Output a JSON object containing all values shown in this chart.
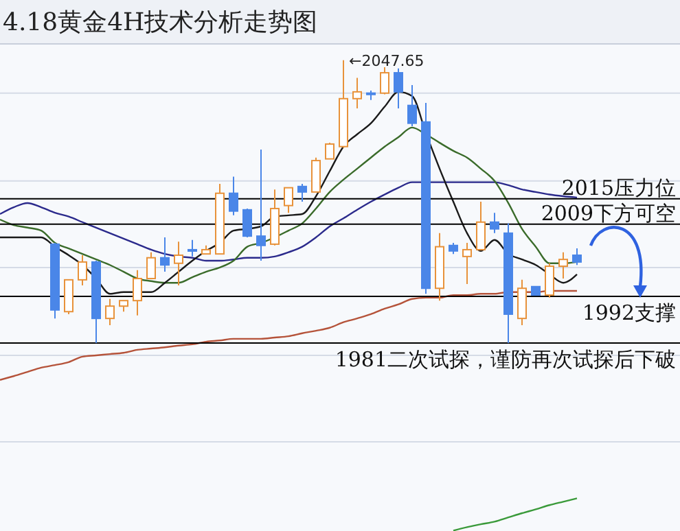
{
  "chart_data": {
    "type": "candlestick",
    "title": "4.18黄金4H技术分析走势图",
    "categories": [
      null,
      null,
      null,
      null,
      null,
      null,
      null,
      null,
      null,
      null,
      null,
      null,
      null,
      null,
      null,
      null,
      null,
      null,
      null,
      null,
      null,
      null,
      null,
      null,
      null,
      null,
      null,
      null,
      null,
      null,
      null,
      null,
      null,
      null,
      null,
      null,
      null,
      null,
      null,
      null,
      null,
      null,
      null,
      null,
      null,
      null,
      null,
      null,
      null,
      null
    ],
    "ohlc": [
      null,
      null,
      null,
      null,
      [
        2004.3,
        2004.6,
        1986.8,
        1988.8
      ],
      [
        1988.4,
        1995.9,
        1987.8,
        1995.9
      ],
      [
        1995.9,
        2001.7,
        1994.6,
        2000.1
      ],
      [
        2000.1,
        2000.4,
        1981,
        1986.8
      ],
      [
        1986.8,
        1991.4,
        1985.2,
        1989.7
      ],
      [
        1989.7,
        1991.0,
        1988.4,
        1991.0
      ],
      [
        1991.0,
        1998.2,
        1987.5,
        1996.2
      ],
      [
        1996.2,
        2002.4,
        1996.2,
        2001.1
      ],
      [
        2001.1,
        2005.9,
        1997.8,
        1999.4
      ],
      [
        1999.8,
        2004.9,
        1994.6,
        2001.7
      ],
      [
        2003.0,
        2005.3,
        2001.4,
        2002.7
      ],
      [
        2002.0,
        2004.0,
        2002.0,
        2003.0
      ],
      [
        2002.0,
        2018.5,
        2002.0,
        2016.3
      ],
      [
        2016.3,
        2020.2,
        2011.1,
        2012.1
      ],
      [
        2012.4,
        2012.7,
        2005.9,
        2006.2
      ],
      [
        2006.2,
        2026.6,
        2000.4,
        2004.0
      ],
      [
        2004.3,
        2017.2,
        2004.0,
        2012.7
      ],
      [
        2013.4,
        2017.6,
        2011.7,
        2017.6
      ],
      [
        2017.9,
        2018.5,
        2014.3,
        2016.6
      ],
      [
        2016.6,
        2024.7,
        2016.6,
        2024.0
      ],
      [
        2024.4,
        2028.2,
        2024.4,
        2027.9
      ],
      [
        2027.3,
        2047.65,
        2027.0,
        2038.6
      ],
      [
        2038.6,
        2043.5,
        2036.3,
        2040.2
      ],
      [
        2039.9,
        2040.5,
        2038.3,
        2039.6
      ],
      [
        2039.9,
        2046.0,
        2039.6,
        2044.7
      ],
      [
        2044.7,
        2045.7,
        2036.3,
        2040.2
      ],
      [
        2037.0,
        2041.8,
        2032.1,
        2032.8
      ],
      [
        2033.1,
        2037.6,
        1992.6,
        1993.9
      ],
      [
        1993.9,
        2006.9,
        1991.0,
        2003.7
      ],
      [
        2004.0,
        2004.6,
        2002.0,
        2002.7
      ],
      [
        2001.4,
        2004.6,
        1994.9,
        2003.0
      ],
      [
        2003.0,
        2014.3,
        2003.0,
        2009.5
      ],
      [
        2009.5,
        2011.7,
        2006.9,
        2007.9
      ],
      [
        2006.9,
        2009.2,
        1981,
        1987.8
      ],
      [
        1986.8,
        1995.9,
        1985.2,
        1993.9
      ],
      [
        1994.3,
        1994.3,
        1992.3,
        1992.3
      ],
      [
        1992.3,
        1999.8,
        1991.7,
        1999.1
      ],
      [
        1999.1,
        2002.4,
        1996.2,
        2000.7
      ],
      [
        2001.7,
        2003.3,
        1999.4,
        2000.1
      ],
      null,
      null,
      null,
      null,
      null,
      null,
      null
    ],
    "colors": [
      null,
      null,
      null,
      null,
      "#4a86e8",
      "#e8923a",
      "#e8923a",
      "#4a86e8",
      "#e8923a",
      "#e8923a",
      "#e8923a",
      "#e8923a",
      "#4a86e8",
      "#e8923a",
      "#4a86e8",
      "#e8923a",
      "#e8923a",
      "#4a86e8",
      "#4a86e8",
      "#4a86e8",
      "#e8923a",
      "#e8923a",
      "#4a86e8",
      "#e8923a",
      "#e8923a",
      "#e8923a",
      "#e8923a",
      "#4a86e8",
      "#e8923a",
      "#4a86e8",
      "#4a86e8",
      "#4a86e8",
      "#e8923a",
      "#4a86e8",
      "#e8923a",
      "#e8923a",
      "#4a86e8",
      "#4a86e8",
      "#e8923a",
      "#4a86e8",
      "#e8923a",
      "#e8923a",
      "#4a86e8",
      null,
      null,
      null,
      null,
      null,
      null,
      null
    ],
    "series": [
      {
        "type": "line",
        "color": "#b5533a",
        "values": [
          1972.3,
          1973.2,
          1974.2,
          1975.2,
          1975.8,
          1976.5,
          1977.8,
          1978.1,
          1978.4,
          1978.7,
          1979.4,
          1979.7,
          1980.0,
          1980.4,
          1980.7,
          1981.3,
          1981.6,
          1982.0,
          1982.0,
          1982.0,
          1982.3,
          1982.6,
          1983.3,
          1983.9,
          1984.6,
          1985.9,
          1986.8,
          1987.8,
          1989.1,
          1990.1,
          1991.4,
          1991.7,
          1991.7,
          1992.3,
          1992.3,
          1992.6,
          1992.6,
          1993.0,
          1993.0,
          1993.0,
          1993.3,
          1993.3,
          1993.3,
          null,
          null,
          null,
          null,
          null,
          null,
          null
        ]
      },
      {
        "type": "line",
        "color": "#2b2a8c",
        "values": [
          2011.4,
          2013.0,
          2014.0,
          2013.0,
          2011.7,
          2010.8,
          2009.5,
          2008.2,
          2006.9,
          2005.6,
          2004.3,
          2003.0,
          2002.0,
          2001.4,
          2001.1,
          2000.4,
          2000.4,
          2000.7,
          2001.1,
          2001.1,
          2001.4,
          2002.4,
          2003.7,
          2005.9,
          2008.5,
          2010.4,
          2012.4,
          2014.3,
          2016.0,
          2017.6,
          2018.9,
          2018.9,
          2018.9,
          2018.9,
          2018.9,
          2018.9,
          2018.9,
          2018.2,
          2017.2,
          2016.6,
          2016.0,
          2015.6,
          2015.3,
          null,
          null,
          null,
          null,
          null,
          null,
          null
        ]
      },
      {
        "type": "line",
        "color": "#3a6b2a",
        "values": [
          2010.1,
          2008.8,
          2008.2,
          2007.5,
          2004.6,
          2003.3,
          2002.0,
          2000.7,
          1999.4,
          1997.8,
          1996.2,
          1995.6,
          1995.2,
          1995.2,
          1996.5,
          1997.8,
          1998.8,
          2000.4,
          2003.7,
          2004.6,
          2005.9,
          2007.5,
          2009.2,
          2012.7,
          2016.6,
          2019.5,
          2022.1,
          2024.7,
          2027.3,
          2029.5,
          2031.8,
          2030.2,
          2028.2,
          2026.3,
          2024.7,
          2022.1,
          2019.2,
          2014.0,
          2007.9,
          2003.7,
          1999.8,
          1999.8,
          2000.1,
          null,
          null,
          null,
          null,
          null,
          null,
          null
        ]
      },
      {
        "type": "line",
        "color": "#1a1a1a",
        "values": [
          2005.9,
          2005.9,
          2005.9,
          2005.9,
          2003.7,
          2001.7,
          1999.4,
          1996.2,
          1992.6,
          1993.0,
          1993.0,
          1993.0,
          1995.2,
          1997.8,
          2000.4,
          2002.7,
          2004.6,
          2007.5,
          2007.9,
          2008.5,
          2010.8,
          2011.1,
          2011.4,
          2015.6,
          2021.5,
          2027.3,
          2030.2,
          2032.8,
          2036.7,
          2040.2,
          2039.2,
          2030.5,
          2022.1,
          2014.3,
          2006.9,
          2002.7,
          2005.3,
          2002.0,
          2000.7,
          1999.4,
          1997.2,
          1995.2,
          1997.2,
          null,
          null,
          null,
          null,
          null,
          null,
          null
        ]
      },
      {
        "type": "line",
        "color": "#3a9a3a",
        "values": [
          null,
          null,
          null,
          null,
          null,
          null,
          null,
          null,
          null,
          null,
          null,
          null,
          null,
          null,
          null,
          null,
          null,
          null,
          null,
          null,
          null,
          null,
          null,
          null,
          null,
          null,
          null,
          null,
          null,
          null,
          null,
          null,
          null,
          1936.8,
          1937.6,
          1938.3,
          1938.9,
          1939.9,
          1940.9,
          1941.8,
          1942.8,
          1943.6,
          1944.4,
          null,
          null,
          null,
          null,
          null,
          null,
          null
        ]
      }
    ],
    "ylim": [
      1936.7,
      2051.5
    ],
    "yticks": [
      {
        "value": 1957.7,
        "label": null
      },
      {
        "value": 1978.1,
        "label": null
      },
      {
        "value": 1998.8,
        "label": null
      },
      {
        "value": 2019.2,
        "label": null
      },
      {
        "value": 2039.9,
        "label": null
      }
    ],
    "grid": "y",
    "ref_lines": [
      {
        "axis": "y",
        "value": 2015,
        "label": "2015压力位",
        "color": "#000000"
      },
      {
        "axis": "y",
        "value": 2009,
        "label": "2009下方可空",
        "color": "#000000"
      },
      {
        "axis": "y",
        "value": 1992,
        "label": "1992支撑",
        "color": "#000000"
      },
      {
        "axis": "y",
        "value": 1981,
        "label": "1981二次试探，谨防再次试探后下破",
        "color": "#000000"
      }
    ],
    "annotations": [
      "←2047.65"
    ]
  }
}
